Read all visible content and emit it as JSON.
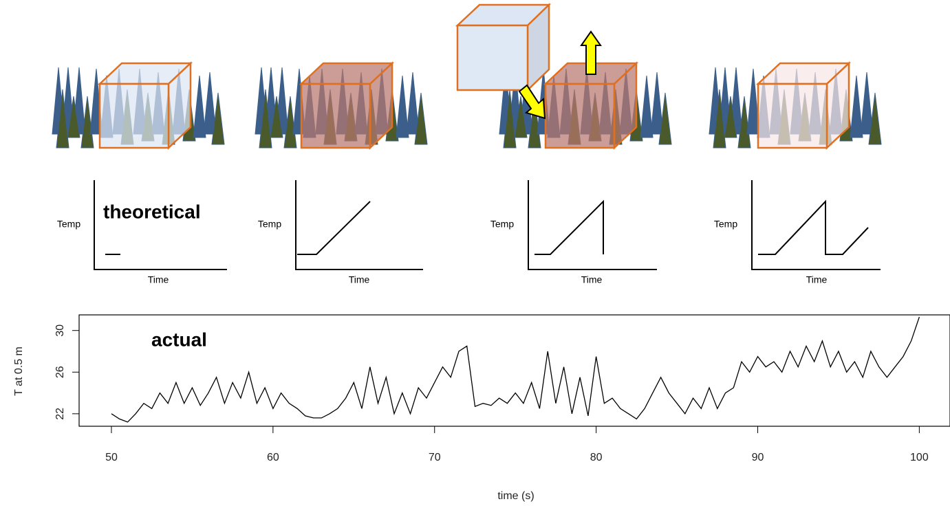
{
  "panels": [
    {
      "ylabel": "Temp",
      "xlabel": "Time"
    },
    {
      "ylabel": "Temp",
      "xlabel": "Time"
    },
    {
      "ylabel": "Temp",
      "xlabel": "Time"
    },
    {
      "ylabel": "Temp",
      "xlabel": "Time"
    }
  ],
  "theoretical_label": "theoretical",
  "chart_data": {
    "type": "line",
    "annotation": "actual",
    "xlabel": "time (s)",
    "ylabel": "T at 0.5 m",
    "color": "#000000",
    "x": [
      50,
      50.5,
      51,
      51.5,
      52,
      52.5,
      53,
      53.5,
      54,
      54.5,
      55,
      55.5,
      56,
      56.5,
      57,
      57.5,
      58,
      58.5,
      59,
      59.5,
      60,
      60.5,
      61,
      61.5,
      62,
      62.5,
      63,
      63.5,
      64,
      64.5,
      65,
      65.5,
      66,
      66.5,
      67,
      67.5,
      68,
      68.5,
      69,
      69.5,
      70,
      70.5,
      71,
      71.5,
      72,
      72.5,
      73,
      73.5,
      74,
      74.5,
      75,
      75.5,
      76,
      76.5,
      77,
      77.5,
      78,
      78.5,
      79,
      79.5,
      80,
      80.5,
      81,
      81.5,
      82,
      82.5,
      83,
      83.5,
      84,
      84.5,
      85,
      85.5,
      86,
      86.5,
      87,
      87.5,
      88,
      88.5,
      89,
      89.5,
      90,
      90.5,
      91,
      91.5,
      92,
      92.5,
      93,
      93.5,
      94,
      94.5,
      95,
      95.5,
      96,
      96.5,
      97,
      97.5,
      98,
      98.5,
      99,
      99.5,
      100
    ],
    "values": [
      22,
      21.5,
      21.2,
      22,
      23,
      22.5,
      24,
      23,
      25,
      23,
      24.5,
      22.8,
      24,
      25.5,
      23,
      25,
      23.5,
      26,
      23,
      24.5,
      22.5,
      24,
      23,
      22.5,
      21.8,
      21.6,
      21.6,
      22,
      22.5,
      23.5,
      25,
      22.5,
      26.5,
      23,
      25.5,
      22,
      24,
      22,
      24.5,
      23.5,
      25,
      26.5,
      25.5,
      28,
      28.5,
      22.7,
      23,
      22.8,
      23.5,
      23,
      24,
      23,
      25,
      22.5,
      28,
      23,
      26.5,
      22,
      25.5,
      21.8,
      27.5,
      23,
      23.5,
      22.5,
      22,
      21.5,
      22.5,
      24,
      25.5,
      24,
      23,
      22,
      23.5,
      22.5,
      24.5,
      22.5,
      24,
      24.5,
      27,
      26,
      27.5,
      26.5,
      27,
      26,
      28,
      26.5,
      28.5,
      27,
      29,
      26.5,
      28,
      26,
      27,
      25.5,
      28,
      26.5,
      25.5,
      26.5,
      27.5,
      29,
      31.3
    ],
    "xlim": [
      48,
      101.9
    ],
    "ylim": [
      20.8,
      31.5
    ],
    "xticks": [
      50,
      60,
      70,
      80,
      90,
      100
    ],
    "yticks": [
      22,
      26,
      30
    ]
  }
}
